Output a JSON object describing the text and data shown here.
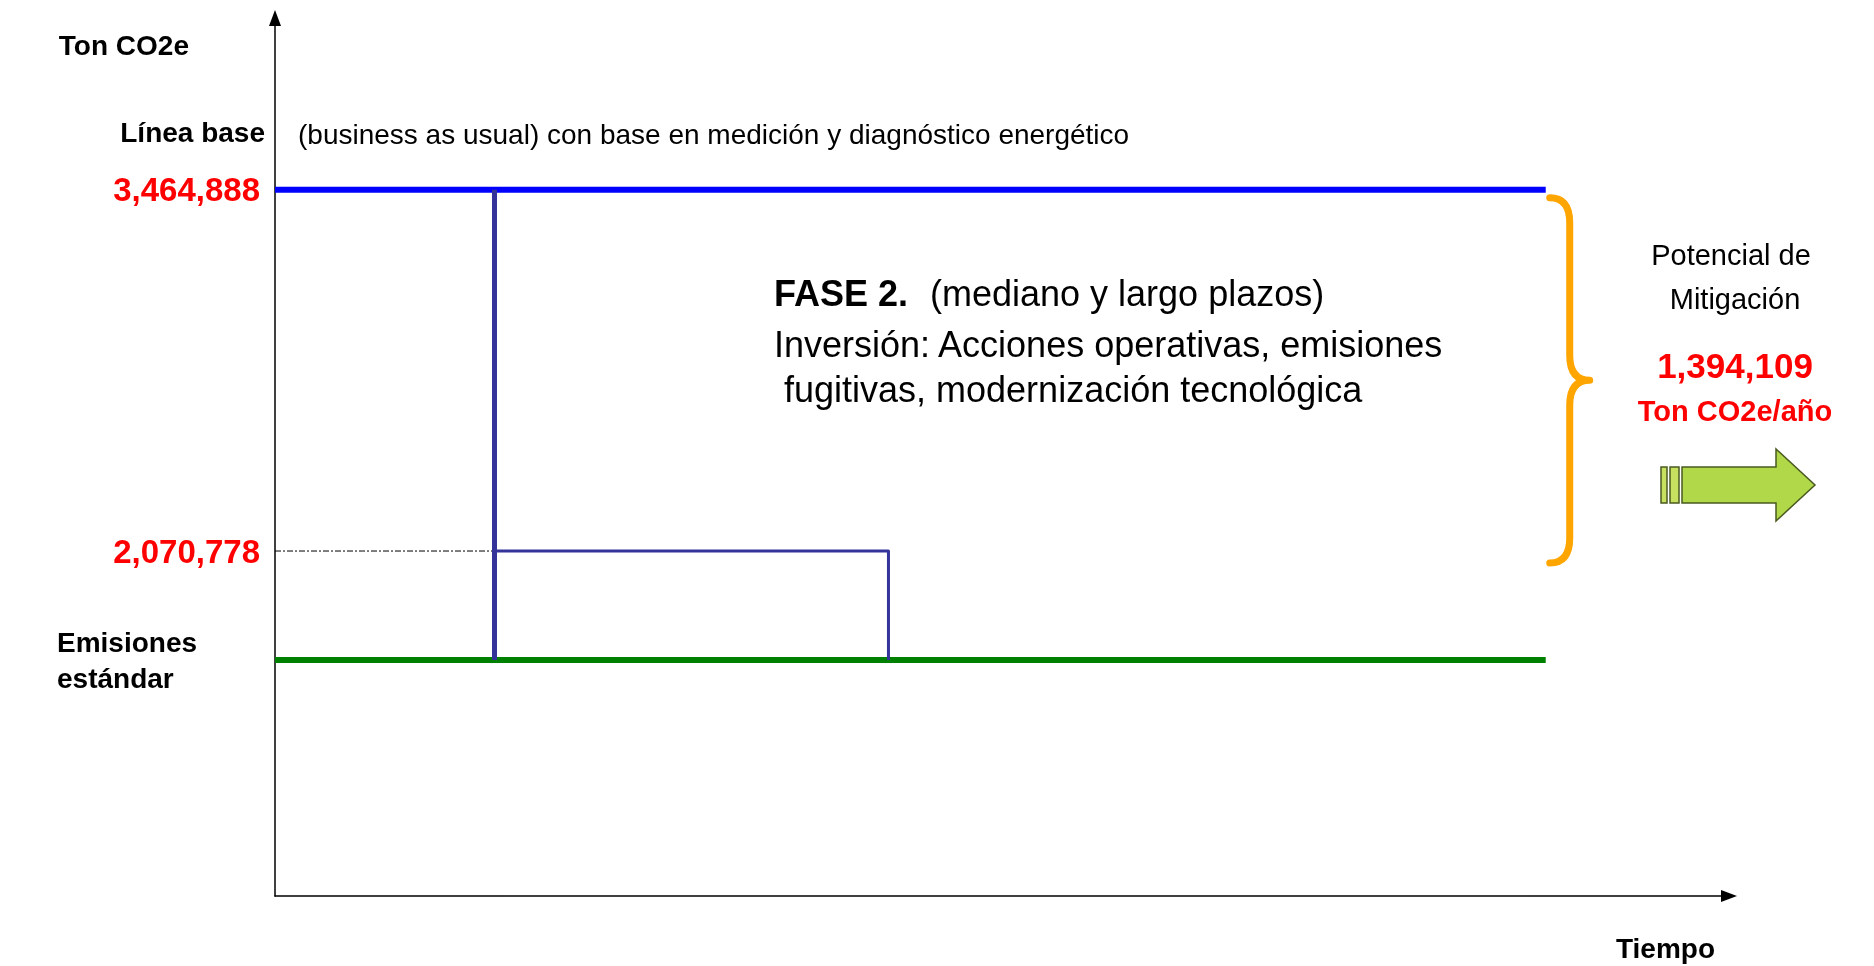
{
  "chart_data": {
    "type": "line",
    "ylabel": "Ton CO2e",
    "categories": [
      null,
      null,
      null,
      null,
      null,
      null,
      null,
      null,
      null,
      null,
      null,
      null,
      null,
      null,
      null,
      null,
      null,
      null,
      null,
      null,
      null,
      null,
      null,
      null,
      null,
      null,
      null,
      null,
      null,
      null,
      null,
      null,
      null,
      null
    ],
    "series": [
      {
        "name": "Línea base",
        "color": "#0000ff",
        "values": [
          3464888,
          3464888,
          3464888,
          3464888,
          3464888,
          3464888,
          3464888,
          3464888,
          3464888,
          3464888,
          3464888,
          3464888,
          3464888,
          3464888,
          3464888,
          3464888,
          3464888,
          3464888,
          3464888,
          3464888,
          3464888,
          3464888,
          3464888,
          3464888,
          3464888,
          3464888,
          3464888,
          3464888,
          3464888,
          3464888,
          null,
          null,
          null,
          null
        ]
      },
      {
        "name": "Emisiones estándar",
        "color": "#008000",
        "values": [
          1650000,
          1650000,
          1650000,
          1650000,
          1650000,
          1650000,
          1650000,
          1650000,
          1650000,
          1650000,
          1650000,
          1650000,
          1650000,
          1650000,
          1650000,
          1650000,
          1650000,
          1650000,
          1650000,
          1650000,
          1650000,
          1650000,
          1650000,
          1650000,
          1650000,
          1650000,
          1650000,
          1650000,
          1650000,
          1650000,
          null,
          null,
          null,
          null
        ]
      },
      {
        "type": "line",
        "color": "#000000",
        "line_style": "dashed",
        "values": [
          2070778,
          2070778,
          2070778,
          2070778,
          2070778,
          2070778,
          null,
          null,
          null,
          null,
          null,
          null,
          null,
          null,
          null,
          null,
          null,
          null,
          null,
          null,
          null,
          null,
          null,
          null,
          null,
          null,
          null,
          null,
          null,
          null,
          null,
          null,
          null,
          null
        ]
      },
      {
        "type": "step",
        "color": "#333399",
        "values": [
          null,
          null,
          null,
          null,
          null,
          2070778,
          2070778,
          2070778,
          2070778,
          2070778,
          2070778,
          2070778,
          2070778,
          2070778,
          1650000,
          null,
          null,
          null,
          null,
          null,
          null,
          null,
          null,
          null,
          null,
          null,
          null,
          null,
          null,
          null,
          null,
          null,
          null,
          null
        ]
      }
    ],
    "ylim": [
      740000,
      4100000
    ],
    "yticks": [
      {
        "value": 3464888,
        "label": "3,464,888"
      },
      {
        "value": 2070778,
        "label": "2,070,778"
      }
    ],
    "tick_labels": "y",
    "grid": false,
    "legend": false,
    "marker": "none",
    "annotations": [
      "(business as usual) con base en medición y diagnóstico energético",
      "FASE 2.",
      "(mediano y largo plazos)",
      "Inversión: Acciones operativas, emisiones fugitivas, modernización tecnológica",
      "Potencial de Mitigación",
      "1,394,109",
      "Ton CO2e/año",
      "Tiempo"
    ]
  }
}
